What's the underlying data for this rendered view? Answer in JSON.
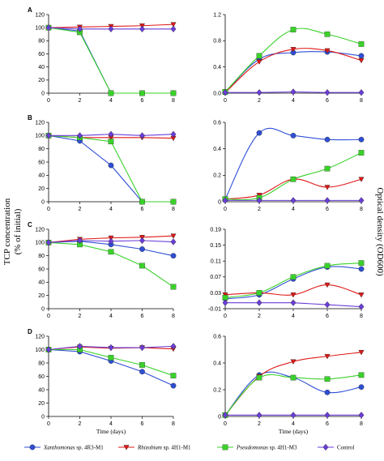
{
  "figure": {
    "y_title_left_line1": "TCP concentration",
    "y_title_left_line2": "(% of initial)",
    "y_title_right": "Optical density (OD600)"
  },
  "colors": {
    "xanthomonas": "#2f4fd6",
    "rhizobium": "#e01818",
    "pseudomonas": "#3ad12a",
    "control": "#6a3dd8"
  },
  "legend": [
    {
      "key": "xanthomonas",
      "genus": "Xanthomonas",
      "rest": " sp. 4R3-M1",
      "marker": "circle"
    },
    {
      "key": "rhizobium",
      "genus": "Rhizobium",
      "rest": " sp. 4H1-M1",
      "marker": "triangle"
    },
    {
      "key": "pseudomonas",
      "genus": "Pseudomonas",
      "rest": " sp. 4H1-M3",
      "marker": "square"
    },
    {
      "key": "control",
      "genus": "",
      "rest": "Control",
      "marker": "diamond"
    }
  ],
  "chart_data": [
    {
      "panel": "A",
      "side": "left",
      "type": "line",
      "x": [
        0,
        2,
        4,
        6,
        8
      ],
      "xticks": [
        0,
        2,
        4,
        6,
        8
      ],
      "ylim": [
        0,
        120
      ],
      "yticks": [
        "0",
        "20",
        "40",
        "60",
        "80",
        "100",
        "120"
      ],
      "ytickvals": [
        0,
        20,
        40,
        60,
        80,
        100,
        120
      ],
      "xlabel": "",
      "series": [
        {
          "key": "xanthomonas",
          "values": [
            100,
            95,
            0,
            0,
            0
          ]
        },
        {
          "key": "rhizobium",
          "values": [
            100,
            101,
            102,
            103,
            105
          ]
        },
        {
          "key": "pseudomonas",
          "values": [
            100,
            93,
            0,
            0,
            0
          ]
        },
        {
          "key": "control",
          "values": [
            100,
            98,
            98,
            98,
            98
          ]
        }
      ]
    },
    {
      "panel": "A",
      "side": "right",
      "type": "line",
      "x": [
        0,
        2,
        4,
        6,
        8
      ],
      "xticks": [
        0,
        2,
        4,
        6,
        8
      ],
      "ylim": [
        0,
        1.2
      ],
      "yticks": [
        "0.0",
        "0.4",
        "0.8",
        "1.2"
      ],
      "ytickvals": [
        0,
        0.4,
        0.8,
        1.2
      ],
      "xlabel": "",
      "series": [
        {
          "key": "xanthomonas",
          "values": [
            0.01,
            0.52,
            0.62,
            0.63,
            0.57
          ]
        },
        {
          "key": "rhizobium",
          "values": [
            0.01,
            0.48,
            0.67,
            0.65,
            0.5
          ]
        },
        {
          "key": "pseudomonas",
          "values": [
            0.02,
            0.57,
            0.97,
            0.9,
            0.75
          ]
        },
        {
          "key": "control",
          "values": [
            0.01,
            0.01,
            0.02,
            0.01,
            0.01
          ]
        }
      ]
    },
    {
      "panel": "B",
      "side": "left",
      "type": "line",
      "x": [
        0,
        2,
        4,
        6,
        8
      ],
      "xticks": [
        0,
        2,
        4,
        6,
        8
      ],
      "ylim": [
        0,
        120
      ],
      "yticks": [
        "0",
        "20",
        "40",
        "60",
        "80",
        "100",
        "120"
      ],
      "ytickvals": [
        0,
        20,
        40,
        60,
        80,
        100,
        120
      ],
      "xlabel": "",
      "series": [
        {
          "key": "xanthomonas",
          "values": [
            100,
            92,
            55,
            0,
            0
          ]
        },
        {
          "key": "rhizobium",
          "values": [
            100,
            97,
            97,
            97,
            96
          ]
        },
        {
          "key": "pseudomonas",
          "values": [
            100,
            97,
            91,
            0,
            0
          ]
        },
        {
          "key": "control",
          "values": [
            100,
            100,
            102,
            100,
            102
          ]
        }
      ]
    },
    {
      "panel": "B",
      "side": "right",
      "type": "line",
      "x": [
        0,
        2,
        4,
        6,
        8
      ],
      "xticks": [
        0,
        2,
        4,
        6,
        8
      ],
      "ylim": [
        0,
        0.6
      ],
      "yticks": [
        "0",
        "0.2",
        "0.4",
        "0.6"
      ],
      "ytickvals": [
        0,
        0.2,
        0.4,
        0.6
      ],
      "xlabel": "",
      "series": [
        {
          "key": "xanthomonas",
          "values": [
            0.02,
            0.52,
            0.5,
            0.47,
            0.47
          ]
        },
        {
          "key": "rhizobium",
          "values": [
            0.02,
            0.05,
            0.17,
            0.11,
            0.17
          ]
        },
        {
          "key": "pseudomonas",
          "values": [
            0.02,
            0.03,
            0.17,
            0.25,
            0.37
          ]
        },
        {
          "key": "control",
          "values": [
            0.01,
            0.01,
            0.01,
            0.01,
            0.01
          ]
        }
      ]
    },
    {
      "panel": "C",
      "side": "left",
      "type": "line",
      "x": [
        0,
        2,
        4,
        6,
        8
      ],
      "xticks": [
        0,
        2,
        4,
        6,
        8
      ],
      "ylim": [
        0,
        120
      ],
      "yticks": [
        "0",
        "20",
        "40",
        "60",
        "80",
        "100",
        "120"
      ],
      "ytickvals": [
        0,
        20,
        40,
        60,
        80,
        100,
        120
      ],
      "xlabel": "",
      "series": [
        {
          "key": "xanthomonas",
          "values": [
            100,
            102,
            97,
            90,
            80
          ]
        },
        {
          "key": "rhizobium",
          "values": [
            100,
            105,
            107,
            108,
            110
          ]
        },
        {
          "key": "pseudomonas",
          "values": [
            100,
            97,
            86,
            65,
            33
          ]
        },
        {
          "key": "control",
          "values": [
            100,
            103,
            102,
            103,
            101
          ]
        }
      ]
    },
    {
      "panel": "C",
      "side": "right",
      "type": "line",
      "x": [
        0,
        2,
        4,
        6,
        8
      ],
      "xticks": [
        0,
        2,
        4,
        6,
        8
      ],
      "ylim": [
        -0.01,
        0.19
      ],
      "yticks": [
        "-0.01",
        "0.03",
        "0.07",
        "0.11",
        "0.15",
        "0.19"
      ],
      "ytickvals": [
        -0.01,
        0.03,
        0.07,
        0.11,
        0.15,
        0.19
      ],
      "xlabel": "",
      "series": [
        {
          "key": "xanthomonas",
          "values": [
            0.015,
            0.025,
            0.065,
            0.095,
            0.09
          ]
        },
        {
          "key": "rhizobium",
          "values": [
            0.025,
            0.03,
            0.025,
            0.05,
            0.025
          ]
        },
        {
          "key": "pseudomonas",
          "values": [
            0.018,
            0.03,
            0.07,
            0.098,
            0.105
          ]
        },
        {
          "key": "control",
          "values": [
            0.005,
            0.005,
            0.005,
            0.0,
            -0.005
          ]
        }
      ]
    },
    {
      "panel": "D",
      "side": "left",
      "type": "line",
      "x": [
        0,
        2,
        4,
        6,
        8
      ],
      "xticks": [
        0,
        2,
        4,
        6,
        8
      ],
      "ylim": [
        0,
        120
      ],
      "yticks": [
        "0",
        "20",
        "40",
        "60",
        "80",
        "100",
        "120"
      ],
      "ytickvals": [
        0,
        20,
        40,
        60,
        80,
        100,
        120
      ],
      "xlabel": "Time (days)",
      "series": [
        {
          "key": "xanthomonas",
          "values": [
            100,
            97,
            83,
            67,
            46
          ]
        },
        {
          "key": "rhizobium",
          "values": [
            100,
            104,
            102,
            103,
            101
          ]
        },
        {
          "key": "pseudomonas",
          "values": [
            100,
            100,
            88,
            77,
            61
          ]
        },
        {
          "key": "control",
          "values": [
            100,
            105,
            103,
            103,
            105
          ]
        }
      ]
    },
    {
      "panel": "D",
      "side": "right",
      "type": "line",
      "x": [
        0,
        2,
        4,
        6,
        8
      ],
      "xticks": [
        0,
        2,
        4,
        6,
        8
      ],
      "ylim": [
        0,
        0.6
      ],
      "yticks": [
        "0",
        "0.2",
        "0.4",
        "0.6"
      ],
      "ytickvals": [
        0,
        0.2,
        0.4,
        0.6
      ],
      "xlabel": "Time (days)",
      "series": [
        {
          "key": "xanthomonas",
          "values": [
            0.01,
            0.31,
            0.29,
            0.18,
            0.22
          ]
        },
        {
          "key": "rhizobium",
          "values": [
            0.01,
            0.3,
            0.41,
            0.45,
            0.48
          ]
        },
        {
          "key": "pseudomonas",
          "values": [
            0.01,
            0.29,
            0.29,
            0.28,
            0.31
          ]
        },
        {
          "key": "control",
          "values": [
            0.01,
            0.01,
            0.01,
            0.01,
            0.01
          ]
        }
      ]
    }
  ]
}
